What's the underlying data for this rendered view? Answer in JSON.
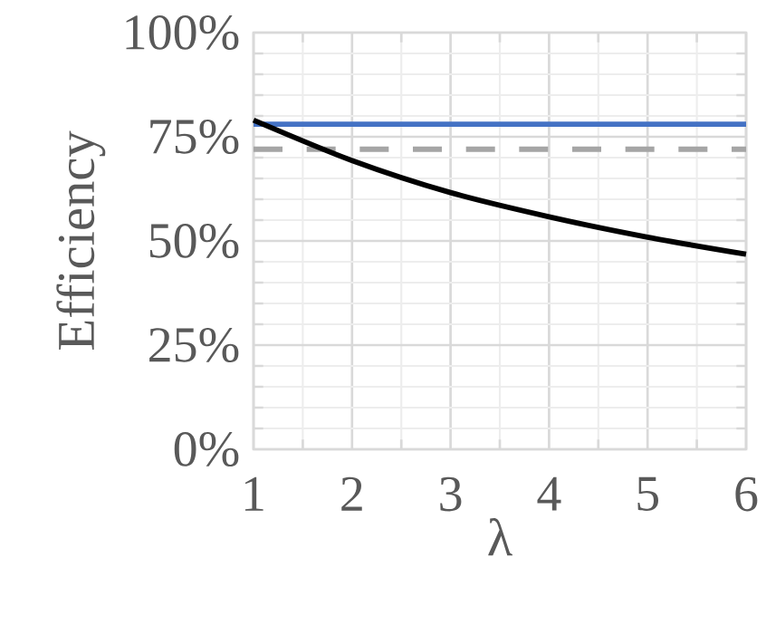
{
  "chart_data": {
    "type": "line",
    "xlabel": "λ",
    "ylabel": "Efficiency",
    "x": [
      1,
      2,
      3,
      4,
      5,
      6
    ],
    "series": [
      {
        "color": "#4472c4",
        "line_style": "solid",
        "values": [
          78,
          78,
          78,
          78,
          78,
          78
        ]
      },
      {
        "color": "#a5a5a5",
        "line_style": "dashed",
        "values": [
          72,
          72,
          72,
          72,
          72,
          72
        ]
      },
      {
        "color": "#000000",
        "line_style": "solid",
        "values": [
          79,
          69.3,
          61.6,
          55.8,
          50.9,
          46.8
        ]
      }
    ],
    "xlim": [
      1,
      6
    ],
    "ylim": [
      0,
      100
    ],
    "xticks": [
      1,
      2,
      3,
      4,
      5,
      6
    ],
    "yticks": [
      {
        "value": 0,
        "label": "0%"
      },
      {
        "value": 25,
        "label": "25%"
      },
      {
        "value": 50,
        "label": "50%"
      },
      {
        "value": 75,
        "label": "75%"
      },
      {
        "value": 100,
        "label": "100%"
      }
    ],
    "grid": true,
    "marker": "none"
  }
}
